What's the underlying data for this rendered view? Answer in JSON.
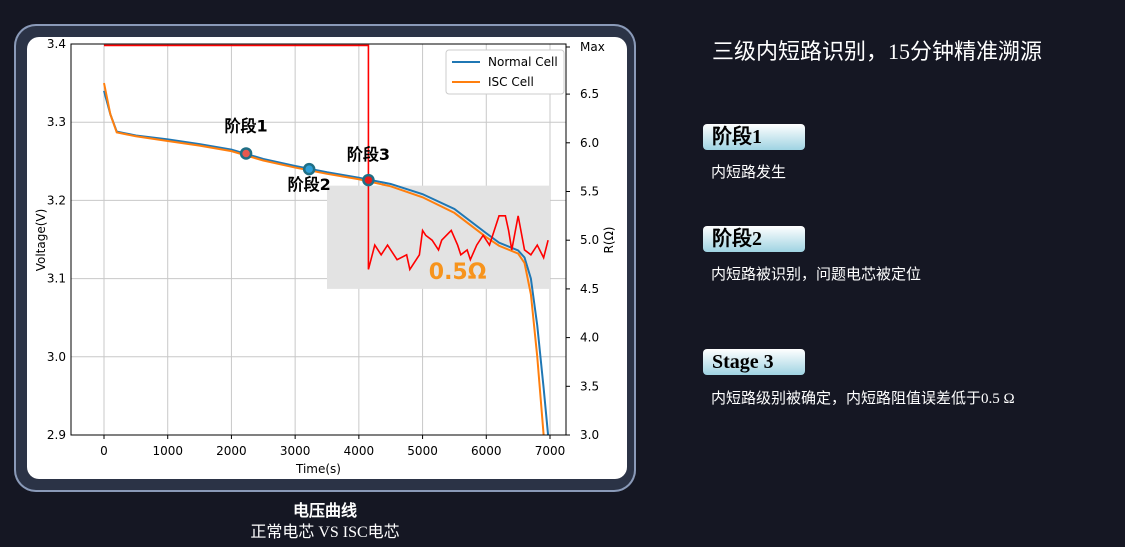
{
  "title": "三级内短路识别，15分钟精准溯源",
  "caption": {
    "line1": "电压曲线",
    "line2": "正常电芯 VS ISC电芯"
  },
  "stages": [
    {
      "badge": "阶段1",
      "desc": "内短路发生"
    },
    {
      "badge": "阶段2",
      "desc": "内短路被识别，问题电芯被定位"
    },
    {
      "badge": "Stage 3",
      "desc": "内短路级别被确定，内短路阻值误差低于0.5 Ω"
    }
  ],
  "chart_data": {
    "type": "line",
    "xlabel": "Time(s)",
    "ylabel": "Voltage(V)",
    "y2label": "R(Ω)",
    "xlim": [
      -400,
      7300
    ],
    "ylim": [
      2.9,
      3.4
    ],
    "y2lim": [
      3.0,
      7.0
    ],
    "xticks": [
      0,
      1000,
      2000,
      3000,
      4000,
      5000,
      6000,
      7000
    ],
    "yticks": [
      2.9,
      3.0,
      3.1,
      3.2,
      3.3,
      3.4
    ],
    "y2ticks": [
      "3.0",
      "3.5",
      "4.0",
      "4.5",
      "5.0",
      "5.5",
      "6.0",
      "6.5",
      "Max"
    ],
    "grid": true,
    "legend": "top-right",
    "series": [
      {
        "name": "Normal Cell",
        "color": "#1f77b4",
        "x": [
          0,
          100,
          200,
          500,
          1000,
          1500,
          2000,
          2500,
          3000,
          3500,
          4000,
          4500,
          5000,
          5500,
          6000,
          6200,
          6500,
          6600,
          6700,
          6800,
          6900,
          6970
        ],
        "y": [
          3.34,
          3.31,
          3.288,
          3.283,
          3.278,
          3.272,
          3.265,
          3.253,
          3.244,
          3.236,
          3.229,
          3.221,
          3.208,
          3.189,
          3.158,
          3.146,
          3.136,
          3.127,
          3.1,
          3.04,
          2.96,
          2.9
        ]
      },
      {
        "name": "ISC Cell",
        "color": "#ff7f0e",
        "x": [
          0,
          100,
          200,
          500,
          1000,
          1500,
          2000,
          2500,
          3000,
          3500,
          4000,
          4500,
          5000,
          5500,
          6000,
          6200,
          6500,
          6600,
          6700,
          6800,
          6900
        ],
        "y": [
          3.35,
          3.31,
          3.287,
          3.282,
          3.276,
          3.27,
          3.263,
          3.251,
          3.242,
          3.234,
          3.227,
          3.218,
          3.204,
          3.184,
          3.153,
          3.142,
          3.132,
          3.12,
          3.08,
          3.0,
          2.9
        ]
      },
      {
        "axis": "right",
        "color": "#ff0000",
        "x": [
          0,
          4150,
          4150,
          4170,
          4250,
          4350,
          4450,
          4600,
          4750,
          4800,
          4950,
          5000,
          5050,
          5150,
          5250,
          5300,
          5450,
          5550,
          5600,
          5700,
          5750,
          5850,
          5950,
          6050,
          6150,
          6200,
          6300,
          6350,
          6400,
          6500,
          6600,
          6700,
          6800,
          6900,
          6970
        ],
        "y": [
          7.0,
          7.0,
          4.7,
          4.75,
          4.95,
          4.85,
          4.95,
          4.8,
          4.85,
          4.7,
          4.85,
          5.1,
          5.05,
          5.0,
          4.9,
          5.0,
          5.1,
          4.95,
          4.85,
          4.9,
          4.8,
          4.95,
          5.05,
          4.95,
          5.15,
          5.25,
          5.25,
          5.1,
          4.9,
          5.25,
          4.9,
          4.85,
          4.95,
          4.82,
          5.0
        ]
      }
    ],
    "highlight": {
      "x": [
        3500,
        7000
      ],
      "y2": [
        4.5,
        5.5
      ],
      "label": "0.5Ω"
    },
    "markers": [
      {
        "label": "阶段1",
        "x": 2230,
        "y": 3.26,
        "color": "#e8584f"
      },
      {
        "label": "阶段2",
        "x": 3220,
        "y": 3.24,
        "color": "#2e9fd8"
      },
      {
        "label": "阶段3",
        "x": 4150,
        "y": 3.226,
        "color": "#e81c1c"
      }
    ]
  }
}
